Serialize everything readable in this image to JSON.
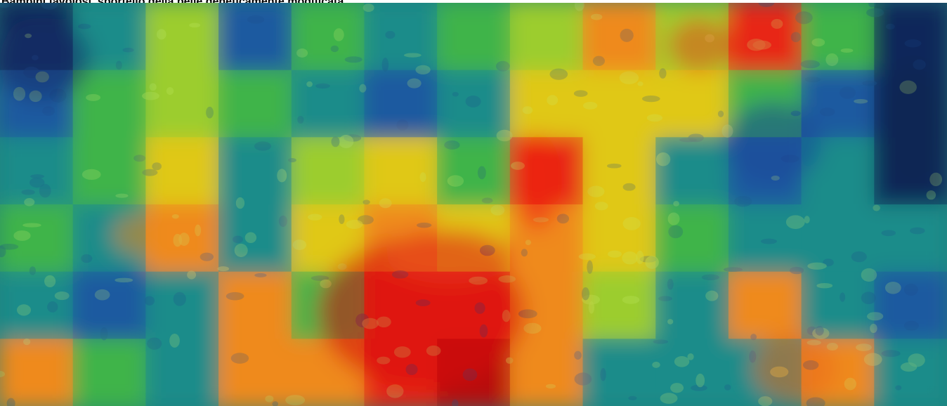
{
  "title": "Bambini favolosi, sportello della pelle geneticamente modificata"
}
